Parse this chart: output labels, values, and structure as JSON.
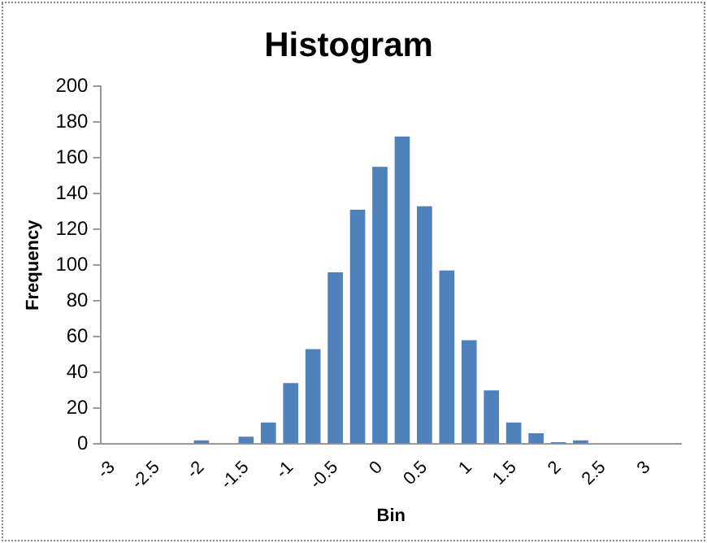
{
  "chart_data": {
    "type": "bar",
    "title": "Histogram",
    "xlabel": "Bin",
    "ylabel": "Frequency",
    "categories": [
      "-3",
      null,
      "-2.5",
      null,
      "-2",
      null,
      "-1.5",
      null,
      "-1",
      null,
      "-0.5",
      null,
      "0",
      null,
      "0.5",
      null,
      "1",
      null,
      "1.5",
      null,
      "2",
      null,
      "2.5",
      null,
      "3",
      null
    ],
    "values": [
      0,
      0,
      0,
      0,
      2,
      0,
      4,
      12,
      34,
      53,
      96,
      131,
      155,
      172,
      133,
      97,
      58,
      30,
      12,
      6,
      1,
      2,
      0,
      0,
      0,
      0
    ],
    "color": "#4f81bd",
    "ylim": [
      0,
      200
    ],
    "yticks": [
      0,
      20,
      40,
      60,
      80,
      100,
      120,
      140,
      160,
      180,
      200
    ],
    "grid": false,
    "legend": false
  }
}
